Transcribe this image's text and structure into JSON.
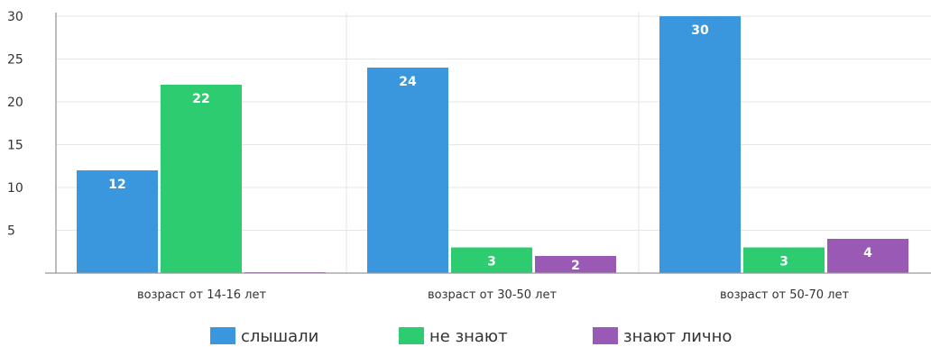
{
  "chart_data": {
    "type": "bar",
    "categories": [
      "возраст от 14-16 лет",
      "возраст от 30-50 лет",
      "возраст от 50-70 лет"
    ],
    "series": [
      {
        "name": "слышали",
        "values": [
          12,
          24,
          30
        ],
        "color": "#3a97dd"
      },
      {
        "name": "не знают",
        "values": [
          22,
          3,
          3
        ],
        "color": "#2ecc71"
      },
      {
        "name": "знают лично",
        "values": [
          0,
          2,
          4
        ],
        "color": "#9b59b6"
      }
    ],
    "yticks": [
      5,
      10,
      15,
      20,
      25,
      30
    ],
    "ylim": [
      0,
      30
    ],
    "grid": true,
    "legend_position": "bottom"
  }
}
